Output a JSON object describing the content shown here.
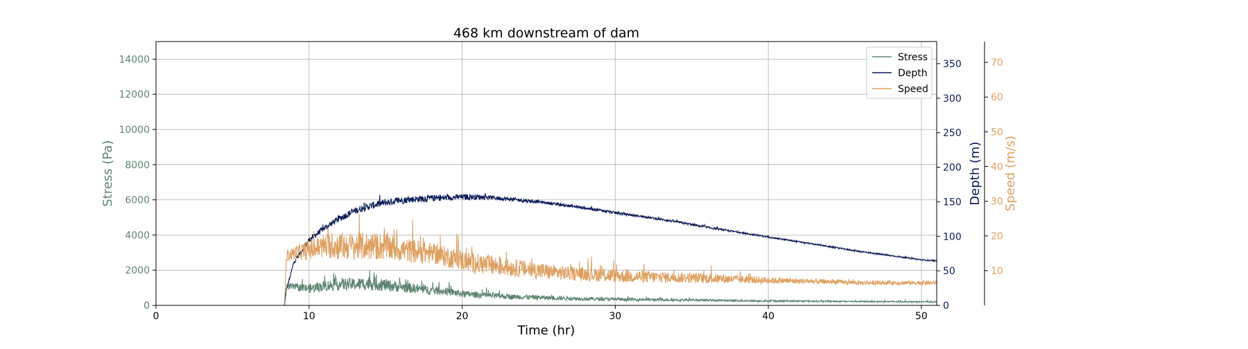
{
  "chart_data": {
    "type": "line",
    "title": "468 km downstream of dam",
    "xlabel": "Time (hr)",
    "xlim": [
      0,
      51
    ],
    "x_ticks": [
      "0",
      "10",
      "20",
      "30",
      "40",
      "50"
    ],
    "grid": true,
    "legend_position": "top-right",
    "axes": {
      "stress": {
        "label": "Stress (Pa)",
        "color": "#5e8470",
        "ylim": [
          0,
          15000
        ],
        "ticks": [
          "0",
          "2000",
          "4000",
          "6000",
          "8000",
          "10000",
          "12000",
          "14000"
        ]
      },
      "depth": {
        "label": "Depth (m)",
        "color": "#0a1a55",
        "ylim": [
          0,
          382
        ],
        "ticks": [
          "0",
          "50",
          "100",
          "150",
          "200",
          "250",
          "300",
          "350"
        ]
      },
      "speed": {
        "label": "Speed (m/s)",
        "color": "#dea060",
        "ylim": [
          0,
          76
        ],
        "ticks": [
          "10",
          "20",
          "30",
          "40",
          "50",
          "60",
          "70"
        ]
      }
    },
    "series": [
      {
        "name": "Stress",
        "axis": "stress",
        "color": "#5e8470",
        "x": [
          0,
          8.4,
          8.5,
          9,
          10,
          11,
          12,
          13,
          14,
          15,
          16,
          17,
          18,
          19,
          20,
          21,
          22,
          23,
          24,
          25,
          26,
          27,
          28,
          29,
          30,
          32,
          34,
          36,
          38,
          40,
          42,
          44,
          46,
          48,
          50,
          51
        ],
        "y": [
          0,
          0,
          1100,
          1050,
          950,
          1100,
          1200,
          1200,
          1250,
          1150,
          1050,
          950,
          850,
          800,
          650,
          600,
          550,
          500,
          480,
          450,
          420,
          400,
          380,
          360,
          350,
          330,
          310,
          290,
          270,
          250,
          240,
          230,
          220,
          210,
          200,
          200
        ],
        "noise": [
          0,
          0,
          200,
          200,
          250,
          300,
          350,
          350,
          400,
          350,
          300,
          280,
          250,
          220,
          200,
          180,
          160,
          150,
          140,
          130,
          120,
          110,
          100,
          95,
          90,
          80,
          70,
          60,
          55,
          50,
          45,
          40,
          40,
          40,
          40,
          40
        ]
      },
      {
        "name": "Depth",
        "axis": "depth",
        "color": "#0a1a55",
        "x": [
          0,
          8.4,
          8.5,
          9,
          10,
          11,
          12,
          13,
          14,
          15,
          16,
          17,
          18,
          19,
          20,
          21,
          22,
          23,
          24,
          25,
          26,
          27,
          28,
          29,
          30,
          32,
          34,
          36,
          38,
          40,
          42,
          44,
          46,
          48,
          50,
          51
        ],
        "y": [
          0,
          0,
          20,
          62,
          95,
          112,
          126,
          137,
          144,
          149,
          152,
          154,
          155,
          156,
          157,
          157,
          156,
          154,
          152,
          150,
          147,
          144,
          141,
          138,
          134,
          128,
          121,
          113,
          106,
          99,
          92,
          85,
          78,
          72,
          66,
          64
        ],
        "noise": [
          0,
          0,
          2,
          3,
          4,
          4,
          5,
          5,
          5,
          5,
          5,
          5,
          5,
          4,
          4,
          4,
          3,
          3,
          3,
          2,
          2,
          2,
          2,
          2,
          2,
          1.5,
          1.5,
          1.5,
          1.2,
          1.2,
          1,
          1,
          1,
          1,
          1,
          1
        ]
      },
      {
        "name": "Speed",
        "axis": "speed",
        "color": "#dea060",
        "x": [
          0,
          8.4,
          8.5,
          9,
          10,
          11,
          12,
          13,
          14,
          15,
          16,
          17,
          18,
          19,
          20,
          21,
          22,
          23,
          24,
          25,
          26,
          27,
          28,
          29,
          30,
          32,
          34,
          36,
          38,
          40,
          42,
          44,
          46,
          48,
          50,
          51
        ],
        "y": [
          0,
          0,
          14,
          15,
          16,
          17,
          17,
          17,
          17,
          17,
          16,
          15.5,
          15,
          14,
          13,
          12,
          11.5,
          11,
          10.5,
          10,
          9.5,
          9.2,
          9,
          8.8,
          8.5,
          8.2,
          8,
          7.8,
          7.5,
          7.2,
          7,
          6.8,
          6.5,
          6.5,
          6.5,
          6.5
        ],
        "noise": [
          0,
          0,
          1.5,
          2,
          3,
          3.5,
          4,
          4,
          4,
          4,
          3.5,
          3.5,
          3,
          3,
          3,
          3,
          3,
          2.5,
          2.5,
          2.5,
          2.2,
          2,
          2,
          2,
          2,
          1.8,
          1.5,
          1.5,
          1.2,
          1,
          0.8,
          0.7,
          0.6,
          0.6,
          0.6,
          0.6
        ]
      }
    ]
  }
}
